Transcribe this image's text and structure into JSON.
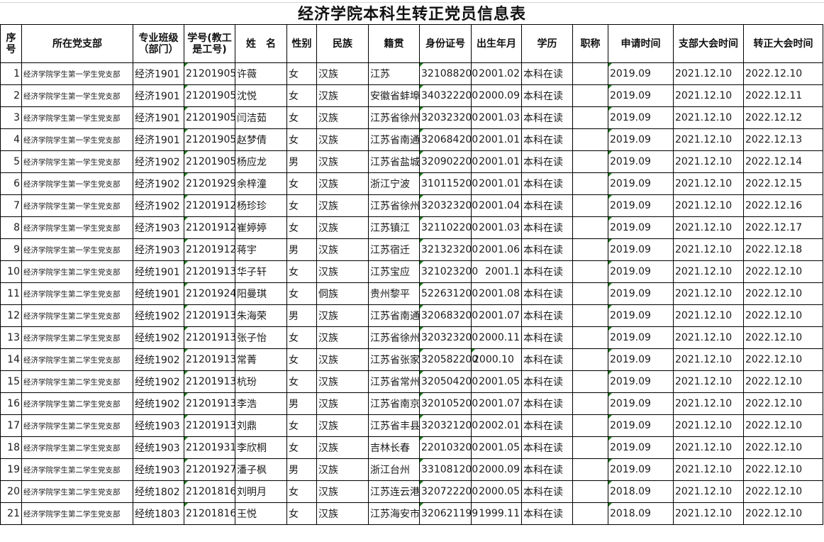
{
  "title": "经济学院本科生转正党员信息表",
  "headers": [
    "序号",
    "所在党支部",
    "专业班级（部门）",
    "学号(教工是工号)",
    "姓　名",
    "性别",
    "民族",
    "籍贯",
    "身份证号",
    "出生年月",
    "学历",
    "职称",
    "申请时间",
    "支部大会时间",
    "转正大会时间"
  ],
  "rows": [
    [
      "1",
      "经济学院学生第一学生党支部",
      "经济1901",
      "21201905",
      "许薇",
      "女",
      "汉族",
      "江苏",
      "321088200",
      "2001.02",
      "本科在读",
      "",
      "2019.09",
      "2021.12.10",
      "2022.12.10"
    ],
    [
      "2",
      "经济学院学生第一学生党支部",
      "经济1901",
      "21201905",
      "沈悦",
      "女",
      "汉族",
      "安徽省蚌埠",
      "340322200",
      "2000.09",
      "本科在读",
      "",
      "2019.09",
      "2021.12.10",
      "2022.12.11"
    ],
    [
      "3",
      "经济学院学生第一学生党支部",
      "经济1901",
      "21201905",
      "闫洁茹",
      "女",
      "汉族",
      "江苏省徐州",
      "320323200",
      "2001.03",
      "本科在读",
      "",
      "2019.09",
      "2021.12.10",
      "2022.12.12"
    ],
    [
      "4",
      "经济学院学生第一学生党支部",
      "经济1901",
      "21201905",
      "赵梦倩",
      "女",
      "汉族",
      "江苏省南通",
      "320684200",
      "2001.01",
      "本科在读",
      "",
      "2019.09",
      "2021.12.10",
      "2022.12.13"
    ],
    [
      "5",
      "经济学院学生第一学生党支部",
      "经济1902",
      "21201905",
      "杨应龙",
      "男",
      "汉族",
      "江苏省盐城",
      "320902200",
      "2001.01",
      "本科在读",
      "",
      "2019.09",
      "2021.12.10",
      "2022.12.14"
    ],
    [
      "6",
      "经济学院学生第一学生党支部",
      "经济1902",
      "21201929",
      "余梓潼",
      "女",
      "汉族",
      "浙江宁波",
      "310115200",
      "2001.01",
      "本科在读",
      "",
      "2019.09",
      "2021.12.10",
      "2022.12.15"
    ],
    [
      "7",
      "经济学院学生第一学生党支部",
      "经济1902",
      "21201912",
      "杨珍珍",
      "女",
      "汉族",
      "江苏省徐州",
      "320323200",
      "2001.04",
      "本科在读",
      "",
      "2019.09",
      "2021.12.10",
      "2022.12.16"
    ],
    [
      "8",
      "经济学院学生第一学生党支部",
      "经济1903",
      "21201912",
      "崔婷婷",
      "女",
      "汉族",
      "江苏镇江",
      "321102200",
      "2001.03",
      "本科在读",
      "",
      "2019.09",
      "2021.12.10",
      "2022.12.17"
    ],
    [
      "9",
      "经济学院学生第一学生党支部",
      "经济1903",
      "21201912",
      "蒋宇",
      "男",
      "汉族",
      "江苏宿迁",
      "321323200",
      "2001.06",
      "本科在读",
      "",
      "2019.09",
      "2021.12.10",
      "2022.12.18"
    ],
    [
      "10",
      "经济学院学生第二学生党支部",
      "经统1901",
      "21201913",
      "华子轩",
      "女",
      "汉族",
      "江苏宝应",
      "321023200",
      "2001.1",
      "本科在读",
      "",
      "2019.09",
      "2021.12.10",
      "2022.12.10"
    ],
    [
      "11",
      "经济学院学生第二学生党支部",
      "经统1901",
      "21201924",
      "阳曼琪",
      "女",
      "侗族",
      "贵州黎平",
      "522631200",
      "2001.08",
      "本科在读",
      "",
      "2019.09",
      "2021.12.10",
      "2022.12.10"
    ],
    [
      "12",
      "经济学院学生第二学生党支部",
      "经统1902",
      "21201913",
      "朱海荣",
      "男",
      "汉族",
      "江苏省南通",
      "320683200",
      "2001.07",
      "本科在读",
      "",
      "2019.09",
      "2021.12.10",
      "2022.12.10"
    ],
    [
      "13",
      "经济学院学生第二学生党支部",
      "经统1902",
      "21201913",
      "张子怡",
      "女",
      "汉族",
      "江苏省徐州",
      "320323200",
      "2000.11",
      "本科在读",
      "",
      "2019.09",
      "2021.12.10",
      "2022.12.10"
    ],
    [
      "14",
      "经济学院学生第二学生党支部",
      "经统1902",
      "21201913",
      "常菁",
      "女",
      "汉族",
      "江苏省张家",
      "320582200",
      "2000.10",
      "本科在读",
      "",
      "2019.09",
      "2021.12.10",
      "2022.12.10"
    ],
    [
      "15",
      "经济学院学生第二学生党支部",
      "经统1902",
      "21201913",
      "杭玢",
      "女",
      "汉族",
      "江苏省常州",
      "320504200",
      "2001.05",
      "本科在读",
      "",
      "2019.09",
      "2021.12.10",
      "2022.12.10"
    ],
    [
      "16",
      "经济学院学生第二学生党支部",
      "经统1902",
      "21201913",
      "李浩",
      "男",
      "汉族",
      "江苏省南京",
      "320105200",
      "2001.07",
      "本科在读",
      "",
      "2019.09",
      "2021.12.10",
      "2022.12.10"
    ],
    [
      "17",
      "经济学院学生第二学生党支部",
      "经统1903",
      "21201913",
      "刘鼎",
      "女",
      "汉族",
      "江苏省丰县",
      "320321200",
      "2002.01",
      "本科在读",
      "",
      "2019.09",
      "2021.12.10",
      "2022.12.10"
    ],
    [
      "18",
      "经济学院学生第二学生党支部",
      "经统1903",
      "21201931",
      "李欣桐",
      "女",
      "汉族",
      "吉林长春",
      "220103200",
      "2001.05",
      "本科在读",
      "",
      "2019.09",
      "2021.12.10",
      "2022.12.10"
    ],
    [
      "19",
      "经济学院学生第二学生党支部",
      "经统1903",
      "21201927",
      "潘子枫",
      "男",
      "汉族",
      "浙江台州",
      "331081200",
      "2000.09",
      "本科在读",
      "",
      "2019.09",
      "2021.12.10",
      "2022.12.10"
    ],
    [
      "20",
      "经济学院学生第二学生党支部",
      "经统1802",
      "21201816",
      "刘明月",
      "女",
      "汉族",
      "江苏连云港",
      "320722200",
      "2000.05",
      "本科在读",
      "",
      "2018.09",
      "2021.12.10",
      "2022.12.10"
    ],
    [
      "21",
      "经济学院学生第二学生党支部",
      "经统1803",
      "21201816",
      "王悦",
      "女",
      "汉族",
      "江苏海安市",
      "320621199",
      "1999.11",
      "本科在读",
      "",
      "2018.09",
      "2021.12.10",
      "2022.12.10"
    ]
  ],
  "colors": {
    "grid": "#000000",
    "text_marker": "#1a7f1a"
  }
}
